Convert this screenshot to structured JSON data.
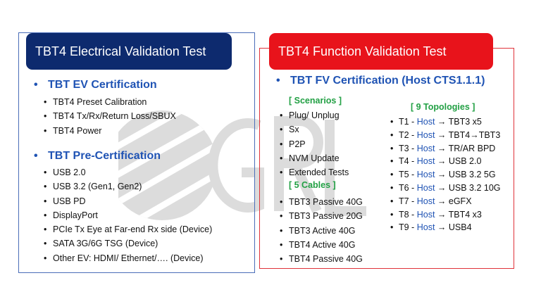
{
  "left_panel": {
    "header": "TBT4 Electrical Validation Test",
    "ev_cert": {
      "title": "TBT EV Certification",
      "items": [
        "TBT4 Preset Calibration",
        "TBT4 Tx/Rx/Return Loss/SBUX",
        "TBT4 Power"
      ]
    },
    "pre_cert": {
      "title": "TBT Pre-Certification",
      "items": [
        "USB 2.0",
        "USB 3.2 (Gen1, Gen2)",
        "USB PD",
        "DisplayPort",
        "PCIe Tx Eye at Far-end Rx side (Device)",
        "SATA 3G/6G TSG (Device)",
        "Other EV: HDMI/ Ethernet/…. (Device)"
      ]
    }
  },
  "right_panel": {
    "header": "TBT4 Function Validation Test",
    "fv_cert_title": "TBT FV Certification (Host CTS1.1.1)",
    "scenarios": {
      "title": "[ Scenarios ]",
      "items": [
        "Plug/ Unplug",
        "Sx",
        "P2P",
        "NVM Update",
        "Extended Tests"
      ]
    },
    "cables": {
      "title": "[ 5 Cables ]",
      "items": [
        "TBT3 Passive 40G",
        "TBT3 Passive 20G",
        "TBT3 Active 40G",
        "TBT4 Active 40G",
        "TBT4 Passive 40G"
      ]
    },
    "topologies": {
      "title": "[ 9 Topologies ]",
      "host_label": "Host",
      "items": [
        {
          "id": "T1 -",
          "target": "→ TBT3 x5"
        },
        {
          "id": "T2 -",
          "target": "→ TBT4→TBT3"
        },
        {
          "id": "T3 -",
          "target": "→ TR/AR BPD"
        },
        {
          "id": "T4 -",
          "target": "→ USB 2.0"
        },
        {
          "id": "T5 -",
          "target": "→ USB 3.2 5G"
        },
        {
          "id": "T6 -",
          "target": "→ USB 3.2 10G"
        },
        {
          "id": "T7 -",
          "target": "→ eGFX"
        },
        {
          "id": "T8 -",
          "target": "→ TBT4 x3"
        },
        {
          "id": "T9 -",
          "target": "→ USB4"
        }
      ]
    }
  },
  "watermark": {
    "text": "GRL",
    "icon": "grl-logo-icon",
    "color": "#d9d9d9"
  }
}
